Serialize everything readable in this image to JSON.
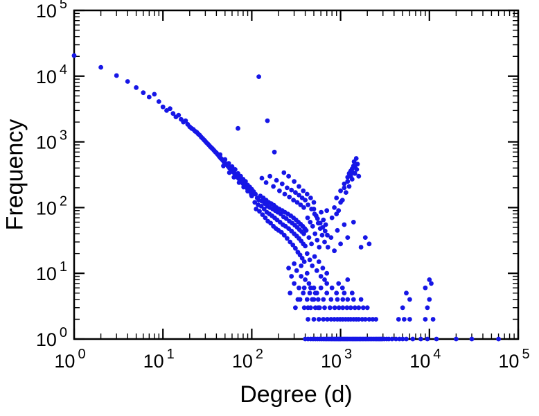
{
  "chart_data": {
    "type": "scatter",
    "title": "",
    "xlabel": "Degree (d)",
    "ylabel": "Frequency",
    "x_scale": "log",
    "y_scale": "log",
    "xlim": [
      1,
      100000
    ],
    "ylim": [
      1,
      100000
    ],
    "x_tick_exponents": [
      0,
      1,
      2,
      3,
      4,
      5
    ],
    "y_tick_exponents": [
      0,
      1,
      2,
      3,
      4,
      5
    ],
    "tick_label_base": "10",
    "grid": false,
    "legend": null,
    "marker_color": "#1616e6",
    "axis_color": "#000000",
    "background_color": "#ffffff",
    "points": [
      [
        1,
        20500
      ],
      [
        2,
        13600
      ],
      [
        3,
        10200
      ],
      [
        4,
        8300
      ],
      [
        5,
        6700
      ],
      [
        6,
        5600
      ],
      [
        7,
        4800
      ],
      [
        8,
        5300
      ],
      [
        9,
        4100
      ],
      [
        10,
        3400
      ],
      [
        11,
        3000
      ],
      [
        12,
        3200
      ],
      [
        13,
        2700
      ],
      [
        14,
        2400
      ],
      [
        15,
        2550
      ],
      [
        16,
        2200
      ],
      [
        17,
        2000
      ],
      [
        18,
        2100
      ],
      [
        19,
        1850
      ],
      [
        20,
        1700
      ],
      [
        21,
        1600
      ],
      [
        22,
        1550
      ],
      [
        23,
        1450
      ],
      [
        24,
        1400
      ],
      [
        25,
        1320
      ],
      [
        26,
        1260
      ],
      [
        27,
        1180
      ],
      [
        28,
        1130
      ],
      [
        29,
        1070
      ],
      [
        30,
        1020
      ],
      [
        31,
        970
      ],
      [
        32,
        930
      ],
      [
        33,
        890
      ],
      [
        34,
        850
      ],
      [
        35,
        820
      ],
      [
        36,
        790
      ],
      [
        37,
        760
      ],
      [
        38,
        730
      ],
      [
        39,
        700
      ],
      [
        40,
        680
      ],
      [
        41,
        650
      ],
      [
        42,
        630
      ],
      [
        43,
        600
      ],
      [
        44,
        580
      ],
      [
        45,
        560
      ],
      [
        46,
        545
      ],
      [
        47,
        525
      ],
      [
        48,
        510
      ],
      [
        49,
        490
      ],
      [
        50,
        475
      ],
      [
        52,
        450
      ],
      [
        54,
        425
      ],
      [
        56,
        400
      ],
      [
        58,
        380
      ],
      [
        60,
        360
      ],
      [
        62,
        345
      ],
      [
        64,
        330
      ],
      [
        66,
        312
      ],
      [
        68,
        298
      ],
      [
        70,
        285
      ],
      [
        72,
        272
      ],
      [
        74,
        260
      ],
      [
        76,
        250
      ],
      [
        78,
        240
      ],
      [
        80,
        230
      ],
      [
        83,
        218
      ],
      [
        86,
        206
      ],
      [
        89,
        196
      ],
      [
        92,
        186
      ],
      [
        95,
        178
      ],
      [
        98,
        170
      ],
      [
        44,
        640
      ],
      [
        50,
        540
      ],
      [
        55,
        470
      ],
      [
        60,
        420
      ],
      [
        65,
        380
      ],
      [
        70,
        330
      ],
      [
        75,
        300
      ],
      [
        80,
        270
      ],
      [
        85,
        250
      ],
      [
        90,
        220
      ],
      [
        95,
        205
      ],
      [
        100,
        190
      ],
      [
        48,
        430
      ],
      [
        56,
        340
      ],
      [
        63,
        290
      ],
      [
        72,
        240
      ],
      [
        81,
        205
      ],
      [
        90,
        178
      ],
      [
        99,
        158
      ],
      [
        70,
        1600
      ],
      [
        120,
        9800
      ],
      [
        150,
        2100
      ],
      [
        180,
        700
      ],
      [
        100,
        150
      ],
      [
        105,
        175
      ],
      [
        108,
        120
      ],
      [
        110,
        160
      ],
      [
        112,
        95
      ],
      [
        115,
        140
      ],
      [
        118,
        110
      ],
      [
        120,
        130
      ],
      [
        122,
        88
      ],
      [
        125,
        150
      ],
      [
        128,
        105
      ],
      [
        130,
        125
      ],
      [
        132,
        78
      ],
      [
        135,
        140
      ],
      [
        138,
        95
      ],
      [
        140,
        115
      ],
      [
        142,
        70
      ],
      [
        145,
        130
      ],
      [
        148,
        85
      ],
      [
        150,
        105
      ],
      [
        152,
        62
      ],
      [
        155,
        120
      ],
      [
        158,
        80
      ],
      [
        160,
        100
      ],
      [
        163,
        58
      ],
      [
        166,
        115
      ],
      [
        169,
        75
      ],
      [
        172,
        95
      ],
      [
        175,
        52
      ],
      [
        178,
        108
      ],
      [
        181,
        70
      ],
      [
        184,
        90
      ],
      [
        187,
        48
      ],
      [
        190,
        100
      ],
      [
        193,
        65
      ],
      [
        196,
        85
      ],
      [
        200,
        45
      ],
      [
        204,
        95
      ],
      [
        208,
        60
      ],
      [
        212,
        80
      ],
      [
        216,
        42
      ],
      [
        220,
        90
      ],
      [
        224,
        55
      ],
      [
        228,
        72
      ],
      [
        232,
        38
      ],
      [
        236,
        85
      ],
      [
        240,
        52
      ],
      [
        245,
        68
      ],
      [
        250,
        34
      ],
      [
        255,
        80
      ],
      [
        260,
        48
      ],
      [
        265,
        62
      ],
      [
        270,
        30
      ],
      [
        275,
        75
      ],
      [
        280,
        44
      ],
      [
        285,
        58
      ],
      [
        290,
        27
      ],
      [
        295,
        70
      ],
      [
        300,
        40
      ],
      [
        305,
        54
      ],
      [
        310,
        24
      ],
      [
        315,
        65
      ],
      [
        320,
        37
      ],
      [
        325,
        50
      ],
      [
        330,
        21
      ],
      [
        335,
        60
      ],
      [
        340,
        34
      ],
      [
        345,
        46
      ],
      [
        350,
        19
      ],
      [
        355,
        56
      ],
      [
        360,
        31
      ],
      [
        365,
        43
      ],
      [
        370,
        17
      ],
      [
        375,
        52
      ],
      [
        380,
        28
      ],
      [
        385,
        40
      ],
      [
        390,
        15
      ],
      [
        395,
        48
      ],
      [
        400,
        26
      ],
      [
        130,
        280
      ],
      [
        145,
        240
      ],
      [
        160,
        300
      ],
      [
        175,
        210
      ],
      [
        190,
        260
      ],
      [
        205,
        180
      ],
      [
        220,
        230
      ],
      [
        235,
        160
      ],
      [
        250,
        200
      ],
      [
        265,
        145
      ],
      [
        280,
        185
      ],
      [
        295,
        130
      ],
      [
        310,
        170
      ],
      [
        325,
        120
      ],
      [
        340,
        155
      ],
      [
        355,
        110
      ],
      [
        370,
        140
      ],
      [
        385,
        100
      ],
      [
        400,
        130
      ],
      [
        230,
        340
      ],
      [
        260,
        300
      ],
      [
        300,
        250
      ],
      [
        340,
        210
      ],
      [
        380,
        180
      ],
      [
        420,
        160
      ],
      [
        460,
        140
      ],
      [
        500,
        120
      ],
      [
        260,
        12
      ],
      [
        280,
        9
      ],
      [
        300,
        7
      ],
      [
        320,
        11
      ],
      [
        340,
        6
      ],
      [
        360,
        9
      ],
      [
        380,
        5
      ],
      [
        400,
        8
      ],
      [
        420,
        4
      ],
      [
        440,
        7
      ],
      [
        300,
        14
      ],
      [
        330,
        4
      ],
      [
        360,
        13
      ],
      [
        390,
        6
      ],
      [
        420,
        10
      ],
      [
        450,
        5
      ],
      [
        270,
        5
      ],
      [
        310,
        3
      ],
      [
        350,
        4
      ],
      [
        390,
        3
      ],
      [
        430,
        3
      ],
      [
        460,
        6
      ],
      [
        480,
        4
      ],
      [
        500,
        6
      ],
      [
        520,
        3
      ],
      [
        540,
        5
      ],
      [
        560,
        4
      ],
      [
        580,
        3
      ],
      [
        410,
        45
      ],
      [
        425,
        70
      ],
      [
        440,
        35
      ],
      [
        455,
        60
      ],
      [
        470,
        28
      ],
      [
        485,
        52
      ],
      [
        500,
        95
      ],
      [
        515,
        40
      ],
      [
        530,
        75
      ],
      [
        545,
        32
      ],
      [
        560,
        58
      ],
      [
        575,
        25
      ],
      [
        590,
        48
      ],
      [
        605,
        85
      ],
      [
        620,
        38
      ],
      [
        640,
        65
      ],
      [
        660,
        30
      ],
      [
        680,
        55
      ],
      [
        700,
        90
      ],
      [
        430,
        110
      ],
      [
        470,
        95
      ],
      [
        510,
        80
      ],
      [
        550,
        68
      ],
      [
        590,
        58
      ],
      [
        630,
        50
      ],
      [
        670,
        44
      ],
      [
        710,
        38
      ],
      [
        420,
        20
      ],
      [
        450,
        16
      ],
      [
        480,
        13
      ],
      [
        510,
        18
      ],
      [
        540,
        11
      ],
      [
        570,
        15
      ],
      [
        600,
        9
      ],
      [
        630,
        12
      ],
      [
        660,
        8
      ],
      [
        700,
        10
      ],
      [
        800,
        70
      ],
      [
        850,
        100
      ],
      [
        900,
        140
      ],
      [
        950,
        90
      ],
      [
        1000,
        180
      ],
      [
        1050,
        130
      ],
      [
        1100,
        230
      ],
      [
        1150,
        170
      ],
      [
        1200,
        290
      ],
      [
        1250,
        210
      ],
      [
        1300,
        360
      ],
      [
        1350,
        270
      ],
      [
        1400,
        430
      ],
      [
        1420,
        500
      ],
      [
        1450,
        330
      ],
      [
        1500,
        560
      ],
      [
        1520,
        380
      ],
      [
        1550,
        460
      ],
      [
        1300,
        300
      ],
      [
        1350,
        390
      ],
      [
        1250,
        330
      ],
      [
        1200,
        250
      ],
      [
        1100,
        200
      ],
      [
        1000,
        120
      ],
      [
        900,
        80
      ],
      [
        1600,
        300
      ],
      [
        1450,
        420
      ],
      [
        1380,
        340
      ],
      [
        720,
        25
      ],
      [
        780,
        35
      ],
      [
        850,
        22
      ],
      [
        920,
        45
      ],
      [
        1000,
        28
      ],
      [
        1100,
        55
      ],
      [
        1200,
        35
      ],
      [
        1400,
        60
      ],
      [
        1700,
        25
      ],
      [
        1900,
        35
      ],
      [
        2100,
        28
      ],
      [
        400,
        1
      ],
      [
        430,
        1
      ],
      [
        460,
        1
      ],
      [
        490,
        1
      ],
      [
        520,
        1
      ],
      [
        550,
        1
      ],
      [
        580,
        1
      ],
      [
        610,
        1
      ],
      [
        640,
        1
      ],
      [
        670,
        1
      ],
      [
        700,
        1
      ],
      [
        730,
        1
      ],
      [
        760,
        1
      ],
      [
        790,
        1
      ],
      [
        820,
        1
      ],
      [
        850,
        1
      ],
      [
        880,
        1
      ],
      [
        910,
        1
      ],
      [
        940,
        1
      ],
      [
        970,
        1
      ],
      [
        1000,
        1
      ],
      [
        1040,
        1
      ],
      [
        1080,
        1
      ],
      [
        1120,
        1
      ],
      [
        1160,
        1
      ],
      [
        1200,
        1
      ],
      [
        1250,
        1
      ],
      [
        1300,
        1
      ],
      [
        1350,
        1
      ],
      [
        1400,
        1
      ],
      [
        1450,
        1
      ],
      [
        1500,
        1
      ],
      [
        1560,
        1
      ],
      [
        1620,
        1
      ],
      [
        1680,
        1
      ],
      [
        1750,
        1
      ],
      [
        1820,
        1
      ],
      [
        1900,
        1
      ],
      [
        1980,
        1
      ],
      [
        2060,
        1
      ],
      [
        2150,
        1
      ],
      [
        2250,
        1
      ],
      [
        2350,
        1
      ],
      [
        2450,
        1
      ],
      [
        2550,
        1
      ],
      [
        2650,
        1
      ],
      [
        2750,
        1
      ],
      [
        2850,
        1
      ],
      [
        2950,
        1
      ],
      [
        3100,
        1
      ],
      [
        3300,
        1
      ],
      [
        3500,
        1
      ],
      [
        3800,
        1
      ],
      [
        4200,
        1
      ],
      [
        4600,
        1
      ],
      [
        5000,
        1
      ],
      [
        5500,
        1
      ],
      [
        6500,
        1
      ],
      [
        8000,
        1
      ],
      [
        9500,
        1
      ],
      [
        12000,
        1
      ],
      [
        20000,
        1
      ],
      [
        30000,
        1
      ],
      [
        60000,
        1
      ],
      [
        430,
        2
      ],
      [
        500,
        2
      ],
      [
        570,
        2
      ],
      [
        640,
        2
      ],
      [
        710,
        2
      ],
      [
        780,
        2
      ],
      [
        850,
        2
      ],
      [
        920,
        2
      ],
      [
        990,
        2
      ],
      [
        1060,
        2
      ],
      [
        1140,
        2
      ],
      [
        1220,
        2
      ],
      [
        1300,
        2
      ],
      [
        1400,
        2
      ],
      [
        1500,
        2
      ],
      [
        1600,
        2
      ],
      [
        1750,
        2
      ],
      [
        1900,
        2
      ],
      [
        2100,
        2
      ],
      [
        2300,
        2
      ],
      [
        2500,
        2
      ],
      [
        4500,
        2
      ],
      [
        5200,
        2
      ],
      [
        6000,
        2
      ],
      [
        9000,
        2
      ],
      [
        11000,
        2
      ],
      [
        460,
        3
      ],
      [
        560,
        3
      ],
      [
        660,
        3
      ],
      [
        760,
        3
      ],
      [
        860,
        3
      ],
      [
        960,
        3
      ],
      [
        1060,
        3
      ],
      [
        1180,
        3
      ],
      [
        1300,
        3
      ],
      [
        1450,
        3
      ],
      [
        1600,
        3
      ],
      [
        1800,
        3
      ],
      [
        2000,
        3
      ],
      [
        5000,
        3
      ],
      [
        9500,
        3
      ],
      [
        500,
        4
      ],
      [
        640,
        4
      ],
      [
        780,
        4
      ],
      [
        920,
        4
      ],
      [
        1060,
        4
      ],
      [
        1200,
        4
      ],
      [
        1400,
        4
      ],
      [
        1700,
        4
      ],
      [
        6000,
        4
      ],
      [
        10000,
        4
      ],
      [
        520,
        5
      ],
      [
        700,
        5
      ],
      [
        900,
        5
      ],
      [
        1100,
        5
      ],
      [
        1350,
        5
      ],
      [
        5500,
        5
      ],
      [
        600,
        6
      ],
      [
        800,
        6
      ],
      [
        1050,
        6
      ],
      [
        9000,
        6
      ],
      [
        700,
        7
      ],
      [
        950,
        7
      ],
      [
        10500,
        7
      ],
      [
        1200,
        8
      ],
      [
        10000,
        8
      ]
    ]
  }
}
